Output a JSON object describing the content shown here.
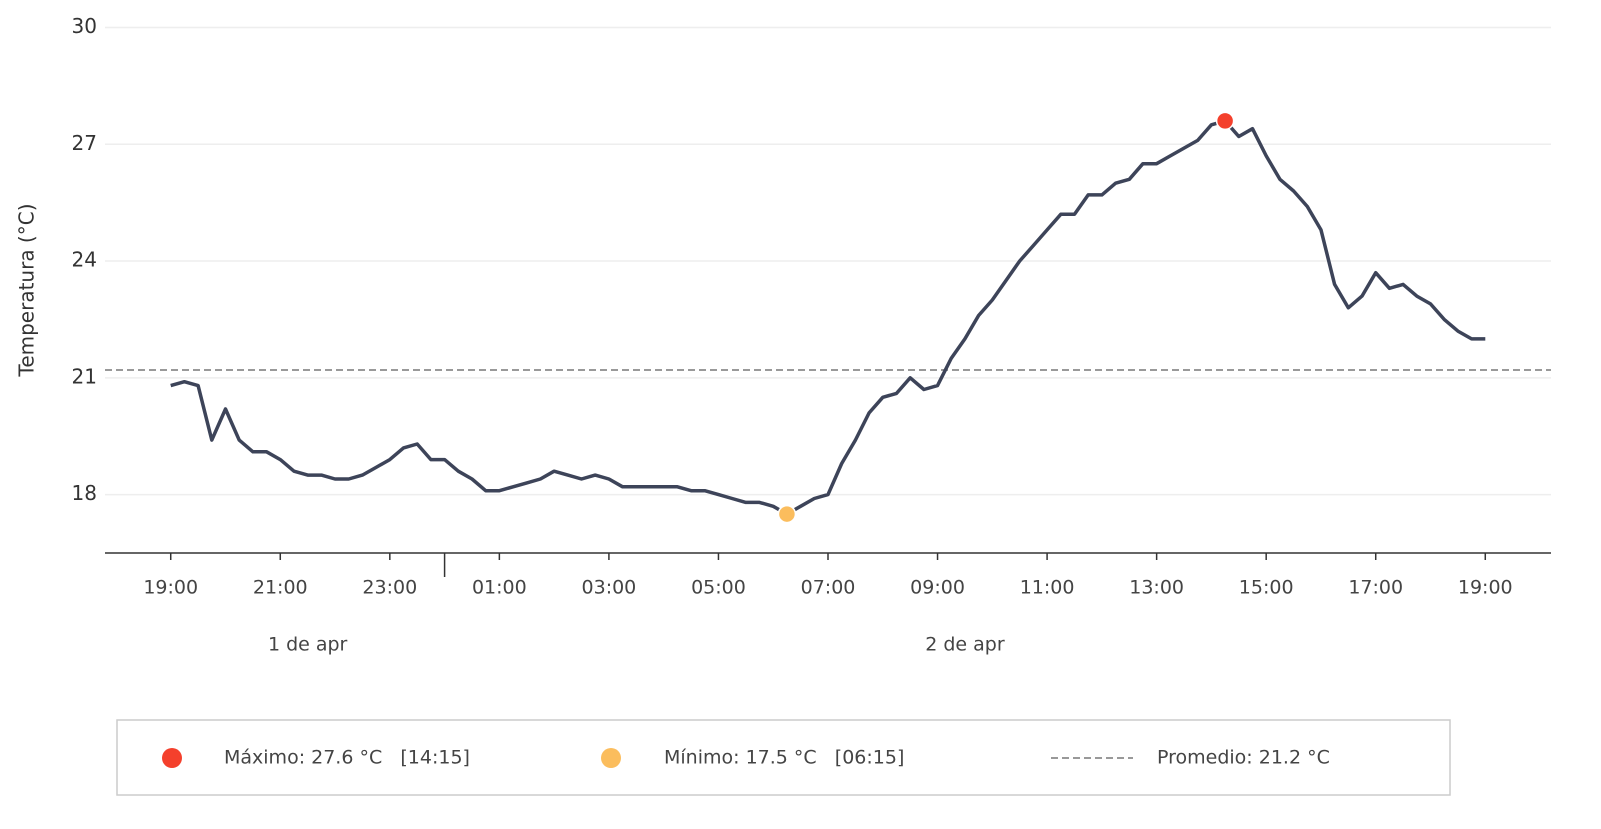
{
  "chart_data": {
    "type": "line",
    "y_label": "Temperatura (°C)",
    "days": [
      "1 de apr",
      "2 de apr"
    ],
    "x": [
      "19:00",
      "19:15",
      "19:30",
      "19:45",
      "20:00",
      "20:15",
      "20:30",
      "20:45",
      "21:00",
      "21:15",
      "21:30",
      "21:45",
      "22:00",
      "22:15",
      "22:30",
      "22:45",
      "23:00",
      "23:15",
      "23:30",
      "23:45",
      "00:00",
      "00:15",
      "00:30",
      "00:45",
      "01:00",
      "01:15",
      "01:30",
      "01:45",
      "02:00",
      "02:15",
      "02:30",
      "02:45",
      "03:00",
      "03:15",
      "03:30",
      "03:45",
      "04:00",
      "04:15",
      "04:30",
      "04:45",
      "05:00",
      "05:15",
      "05:30",
      "05:45",
      "06:00",
      "06:15",
      "06:30",
      "06:45",
      "07:00",
      "07:15",
      "07:30",
      "07:45",
      "08:00",
      "08:15",
      "08:30",
      "08:45",
      "09:00",
      "09:15",
      "09:30",
      "09:45",
      "10:00",
      "10:15",
      "10:30",
      "10:45",
      "11:00",
      "11:15",
      "11:30",
      "11:45",
      "12:00",
      "12:15",
      "12:30",
      "12:45",
      "13:00",
      "13:15",
      "13:30",
      "13:45",
      "14:00",
      "14:15",
      "14:30",
      "14:45",
      "15:00",
      "15:15",
      "15:30",
      "15:45",
      "16:00",
      "16:15",
      "16:30",
      "16:45",
      "17:00",
      "17:15",
      "17:30",
      "17:45",
      "18:00",
      "18:15",
      "18:30",
      "18:45",
      "19:00"
    ],
    "series": [
      {
        "color": "#3d4459",
        "values": [
          20.8,
          20.9,
          20.8,
          19.4,
          20.2,
          19.4,
          19.1,
          19.1,
          18.9,
          18.6,
          18.5,
          18.5,
          18.4,
          18.4,
          18.5,
          18.7,
          18.9,
          19.2,
          19.3,
          18.9,
          18.9,
          18.6,
          18.4,
          18.1,
          18.1,
          18.2,
          18.3,
          18.4,
          18.6,
          18.5,
          18.4,
          18.5,
          18.4,
          18.2,
          18.2,
          18.2,
          18.2,
          18.2,
          18.1,
          18.1,
          18.0,
          17.9,
          17.8,
          17.8,
          17.7,
          17.5,
          17.7,
          17.9,
          18.0,
          18.8,
          19.4,
          20.1,
          20.5,
          20.6,
          21.0,
          20.7,
          20.8,
          21.5,
          22.0,
          22.6,
          23.0,
          23.5,
          24.0,
          24.4,
          24.8,
          25.2,
          25.2,
          25.7,
          25.7,
          26.0,
          26.1,
          26.5,
          26.5,
          26.7,
          26.9,
          27.1,
          27.5,
          27.6,
          27.2,
          27.4,
          26.7,
          26.1,
          25.8,
          25.4,
          24.8,
          23.4,
          22.8,
          23.1,
          23.7,
          23.3,
          23.4,
          23.1,
          22.9,
          22.5,
          22.2,
          22.0,
          22.0
        ]
      }
    ],
    "max": {
      "x": "14:15",
      "value": 27.6,
      "color": "#f4402c",
      "label": "Máximo: 27.6 °C   [14:15]"
    },
    "min": {
      "x": "06:15",
      "value": 17.5,
      "color": "#fbbd5d",
      "label": "Mínimo: 17.5 °C   [06:15]"
    },
    "average": {
      "value": 21.2,
      "color": "#999999",
      "label": "Promedio: 21.2 °C"
    },
    "xlim": [
      {
        "day": "1 de apr",
        "time": "17:48"
      },
      {
        "day": "2 de apr",
        "time": "20:12"
      }
    ],
    "xticks": [
      "19:00",
      "21:00",
      "23:00",
      "01:00",
      "03:00",
      "05:00",
      "07:00",
      "09:00",
      "11:00",
      "13:00",
      "15:00",
      "17:00",
      "19:00"
    ],
    "ylim": [
      16.5,
      30.5
    ],
    "yticks": [
      18,
      21,
      24,
      27,
      30
    ],
    "grid": true
  }
}
